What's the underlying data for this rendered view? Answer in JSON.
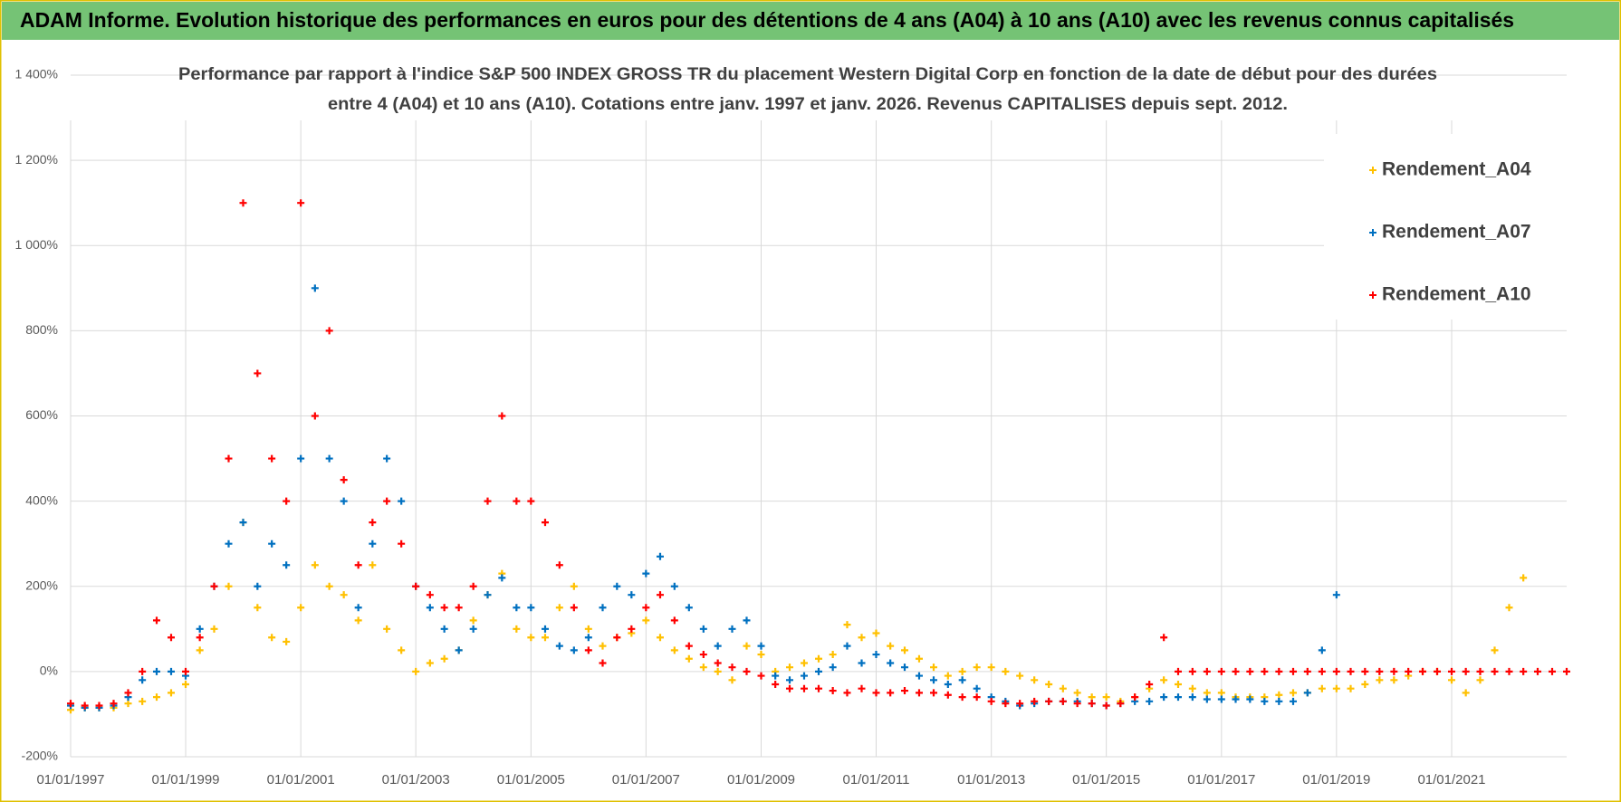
{
  "chart_data": {
    "type": "scatter",
    "title": "ADAM Informe. Evolution historique des performances en euros pour des détentions de 4 ans (A04) à 10 ans (A10) avec les revenus connus capitalisés",
    "subtitle": [
      "Performance par rapport à l'indice S&P 500 INDEX GROSS TR  du placement Western Digital Corp en fonction de la date de début pour des durées",
      "entre 4 (A04) et 10 ans (A10).  Cotations entre janv. 1997 et janv. 2026. Revenus CAPITALISES depuis sept. 2012."
    ],
    "xlim": [
      "1997-01-01",
      "2023-01-01"
    ],
    "xticks": [
      {
        "value": "1997-01-01",
        "label": "01/01/1997"
      },
      {
        "value": "1999-01-01",
        "label": "01/01/1999"
      },
      {
        "value": "2001-01-01",
        "label": "01/01/2001"
      },
      {
        "value": "2003-01-01",
        "label": "01/01/2003"
      },
      {
        "value": "2005-01-01",
        "label": "01/01/2005"
      },
      {
        "value": "2007-01-01",
        "label": "01/01/2007"
      },
      {
        "value": "2009-01-01",
        "label": "01/01/2009"
      },
      {
        "value": "2011-01-01",
        "label": "01/01/2011"
      },
      {
        "value": "2013-01-01",
        "label": "01/01/2013"
      },
      {
        "value": "2015-01-01",
        "label": "01/01/2015"
      },
      {
        "value": "2017-01-01",
        "label": "01/01/2017"
      },
      {
        "value": "2019-01-01",
        "label": "01/01/2019"
      },
      {
        "value": "2021-01-01",
        "label": "01/01/2021"
      }
    ],
    "ylim": [
      -200,
      1400
    ],
    "yticks": [
      {
        "value": 1400,
        "label": "1 400%"
      },
      {
        "value": 1200,
        "label": "1 200%"
      },
      {
        "value": 1000,
        "label": "1 000%"
      },
      {
        "value": 800,
        "label": "800%"
      },
      {
        "value": 600,
        "label": "600%"
      },
      {
        "value": 400,
        "label": "400%"
      },
      {
        "value": 200,
        "label": "200%"
      },
      {
        "value": 0,
        "label": "0%"
      },
      {
        "value": -200,
        "label": "-200%"
      }
    ],
    "grid": true,
    "legend": "upper right",
    "series": [
      {
        "name": "Rendement_A04",
        "color": "#ffc000",
        "x": [
          "1997-01-01",
          "1997-04-01",
          "1997-07-01",
          "1997-10-01",
          "1998-01-01",
          "1998-04-01",
          "1998-07-01",
          "1998-10-01",
          "1999-01-01",
          "1999-04-01",
          "1999-07-01",
          "1999-10-01",
          "2000-01-01",
          "2000-04-01",
          "2000-07-01",
          "2000-10-01",
          "2001-01-01",
          "2001-04-01",
          "2001-07-01",
          "2001-10-01",
          "2002-01-01",
          "2002-04-01",
          "2002-07-01",
          "2002-10-01",
          "2003-01-01",
          "2003-04-01",
          "2003-07-01",
          "2003-10-01",
          "2004-01-01",
          "2004-04-01",
          "2004-07-01",
          "2004-10-01",
          "2005-01-01",
          "2005-04-01",
          "2005-07-01",
          "2005-10-01",
          "2006-01-01",
          "2006-04-01",
          "2006-07-01",
          "2006-10-01",
          "2007-01-01",
          "2007-04-01",
          "2007-07-01",
          "2007-10-01",
          "2008-01-01",
          "2008-04-01",
          "2008-07-01",
          "2008-10-01",
          "2009-01-01",
          "2009-04-01",
          "2009-07-01",
          "2009-10-01",
          "2010-01-01",
          "2010-04-01",
          "2010-07-01",
          "2010-10-01",
          "2011-01-01",
          "2011-04-01",
          "2011-07-01",
          "2011-10-01",
          "2012-01-01",
          "2012-04-01",
          "2012-07-01",
          "2012-10-01",
          "2013-01-01",
          "2013-04-01",
          "2013-07-01",
          "2013-10-01",
          "2014-01-01",
          "2014-04-01",
          "2014-07-01",
          "2014-10-01",
          "2015-01-01",
          "2015-04-01",
          "2015-07-01",
          "2015-10-01",
          "2016-01-01",
          "2016-04-01",
          "2016-07-01",
          "2016-10-01",
          "2017-01-01",
          "2017-04-01",
          "2017-07-01",
          "2017-10-01",
          "2018-01-01",
          "2018-04-01",
          "2018-07-01",
          "2018-10-01",
          "2019-01-01",
          "2019-04-01",
          "2019-07-01",
          "2019-10-01",
          "2020-01-01",
          "2020-04-01",
          "2020-07-01",
          "2020-10-01",
          "2021-01-01",
          "2021-04-01",
          "2021-07-01",
          "2021-10-01",
          "2022-01-01",
          "2022-04-01"
        ],
        "values": [
          -90,
          -85,
          -85,
          -85,
          -75,
          -70,
          -60,
          -50,
          -30,
          50,
          100,
          200,
          350,
          150,
          80,
          70,
          150,
          250,
          200,
          180,
          120,
          250,
          100,
          50,
          0,
          20,
          30,
          50,
          120,
          180,
          230,
          100,
          80,
          80,
          150,
          200,
          100,
          60,
          80,
          90,
          120,
          80,
          50,
          30,
          10,
          0,
          -20,
          60,
          40,
          0,
          10,
          20,
          30,
          40,
          110,
          80,
          90,
          60,
          50,
          30,
          10,
          -10,
          0,
          10,
          10,
          0,
          -10,
          -20,
          -30,
          -40,
          -50,
          -60,
          -60,
          -70,
          -60,
          -40,
          -20,
          -30,
          -40,
          -50,
          -50,
          -60,
          -60,
          -60,
          -55,
          -50,
          -50,
          -40,
          -40,
          -40,
          -30,
          -20,
          -20,
          -10,
          0,
          0,
          -20,
          -50,
          -20,
          50,
          150,
          220
        ]
      },
      {
        "name": "Rendement_A07",
        "color": "#0070c0",
        "x": [
          "1997-01-01",
          "1997-04-01",
          "1997-07-01",
          "1997-10-01",
          "1998-01-01",
          "1998-04-01",
          "1998-07-01",
          "1998-10-01",
          "1999-01-01",
          "1999-04-01",
          "1999-07-01",
          "1999-10-01",
          "2000-01-01",
          "2000-04-01",
          "2000-07-01",
          "2000-10-01",
          "2001-01-01",
          "2001-04-01",
          "2001-07-01",
          "2001-10-01",
          "2002-01-01",
          "2002-04-01",
          "2002-07-01",
          "2002-10-01",
          "2003-01-01",
          "2003-04-01",
          "2003-07-01",
          "2003-10-01",
          "2004-01-01",
          "2004-04-01",
          "2004-07-01",
          "2004-10-01",
          "2005-01-01",
          "2005-04-01",
          "2005-07-01",
          "2005-10-01",
          "2006-01-01",
          "2006-04-01",
          "2006-07-01",
          "2006-10-01",
          "2007-01-01",
          "2007-04-01",
          "2007-07-01",
          "2007-10-01",
          "2008-01-01",
          "2008-04-01",
          "2008-07-01",
          "2008-10-01",
          "2009-01-01",
          "2009-04-01",
          "2009-07-01",
          "2009-10-01",
          "2010-01-01",
          "2010-04-01",
          "2010-07-01",
          "2010-10-01",
          "2011-01-01",
          "2011-04-01",
          "2011-07-01",
          "2011-10-01",
          "2012-01-01",
          "2012-04-01",
          "2012-07-01",
          "2012-10-01",
          "2013-01-01",
          "2013-04-01",
          "2013-07-01",
          "2013-10-01",
          "2014-01-01",
          "2014-04-01",
          "2014-07-01",
          "2014-10-01",
          "2015-01-01",
          "2015-04-01",
          "2015-07-01",
          "2015-10-01",
          "2016-01-01",
          "2016-04-01",
          "2016-07-01",
          "2016-10-01",
          "2017-01-01",
          "2017-04-01",
          "2017-07-01",
          "2017-10-01",
          "2018-01-01",
          "2018-04-01",
          "2018-07-01",
          "2018-10-01",
          "2019-01-01"
        ],
        "values": [
          -80,
          -85,
          -85,
          -80,
          -60,
          -20,
          0,
          0,
          -10,
          100,
          200,
          300,
          350,
          200,
          300,
          250,
          500,
          900,
          500,
          400,
          150,
          300,
          500,
          400,
          200,
          150,
          100,
          50,
          100,
          180,
          220,
          150,
          150,
          100,
          60,
          50,
          80,
          150,
          200,
          180,
          230,
          270,
          200,
          150,
          100,
          60,
          100,
          120,
          60,
          -10,
          -20,
          -10,
          0,
          10,
          60,
          20,
          40,
          20,
          10,
          -10,
          -20,
          -30,
          -20,
          -40,
          -60,
          -70,
          -80,
          -75,
          -70,
          -70,
          -70,
          -75,
          -80,
          -75,
          -70,
          -70,
          -60,
          -60,
          -60,
          -65,
          -65,
          -65,
          -65,
          -70,
          -70,
          -70,
          -50,
          50,
          180
        ]
      },
      {
        "name": "Rendement_A10",
        "color": "#ff0000",
        "x": [
          "1997-01-01",
          "1997-04-01",
          "1997-07-01",
          "1997-10-01",
          "1998-01-01",
          "1998-04-01",
          "1998-07-01",
          "1998-10-01",
          "1999-01-01",
          "1999-04-01",
          "1999-07-01",
          "1999-10-01",
          "2000-01-01",
          "2000-04-01",
          "2000-07-01",
          "2000-10-01",
          "2001-01-01",
          "2001-04-01",
          "2001-07-01",
          "2001-10-01",
          "2002-01-01",
          "2002-04-01",
          "2002-07-01",
          "2002-10-01",
          "2003-01-01",
          "2003-04-01",
          "2003-07-01",
          "2003-10-01",
          "2004-01-01",
          "2004-04-01",
          "2004-07-01",
          "2004-10-01",
          "2005-01-01",
          "2005-04-01",
          "2005-07-01",
          "2005-10-01",
          "2006-01-01",
          "2006-04-01",
          "2006-07-01",
          "2006-10-01",
          "2007-01-01",
          "2007-04-01",
          "2007-07-01",
          "2007-10-01",
          "2008-01-01",
          "2008-04-01",
          "2008-07-01",
          "2008-10-01",
          "2009-01-01",
          "2009-04-01",
          "2009-07-01",
          "2009-10-01",
          "2010-01-01",
          "2010-04-01",
          "2010-07-01",
          "2010-10-01",
          "2011-01-01",
          "2011-04-01",
          "2011-07-01",
          "2011-10-01",
          "2012-01-01",
          "2012-04-01",
          "2012-07-01",
          "2012-10-01",
          "2013-01-01",
          "2013-04-01",
          "2013-07-01",
          "2013-10-01",
          "2014-01-01",
          "2014-04-01",
          "2014-07-01",
          "2014-10-01",
          "2015-01-01",
          "2015-04-01",
          "2015-07-01",
          "2015-10-01",
          "2016-01-01",
          "2016-04-01",
          "2016-07-01",
          "2016-10-01",
          "2017-01-01",
          "2017-04-01",
          "2017-07-01",
          "2017-10-01",
          "2018-01-01",
          "2018-04-01",
          "2018-07-01",
          "2018-10-01",
          "2019-01-01",
          "2019-04-01",
          "2019-07-01",
          "2019-10-01",
          "2020-01-01",
          "2020-04-01",
          "2020-07-01",
          "2020-10-01",
          "2021-01-01",
          "2021-04-01",
          "2021-07-01",
          "2021-10-01",
          "2022-01-01",
          "2022-04-01",
          "2022-07-01",
          "2022-10-01",
          "2023-01-01"
        ],
        "values": [
          -75,
          -80,
          -80,
          -75,
          -50,
          0,
          120,
          80,
          0,
          80,
          200,
          500,
          1100,
          700,
          500,
          400,
          1100,
          600,
          800,
          450,
          250,
          350,
          400,
          300,
          200,
          180,
          150,
          150,
          200,
          400,
          600,
          400,
          400,
          350,
          250,
          150,
          50,
          20,
          80,
          100,
          150,
          180,
          120,
          60,
          40,
          20,
          10,
          0,
          -10,
          -30,
          -40,
          -40,
          -40,
          -45,
          -50,
          -40,
          -50,
          -50,
          -45,
          -50,
          -50,
          -55,
          -60,
          -60,
          -70,
          -75,
          -75,
          -70,
          -70,
          -70,
          -75,
          -75,
          -80,
          -75,
          -60,
          -30,
          80,
          0,
          0,
          0,
          0,
          0,
          0,
          0,
          0,
          0,
          0,
          0,
          0,
          0,
          0,
          0,
          0,
          0,
          0,
          0,
          0,
          0,
          0,
          0,
          0,
          0,
          0,
          0,
          0
        ]
      }
    ]
  }
}
